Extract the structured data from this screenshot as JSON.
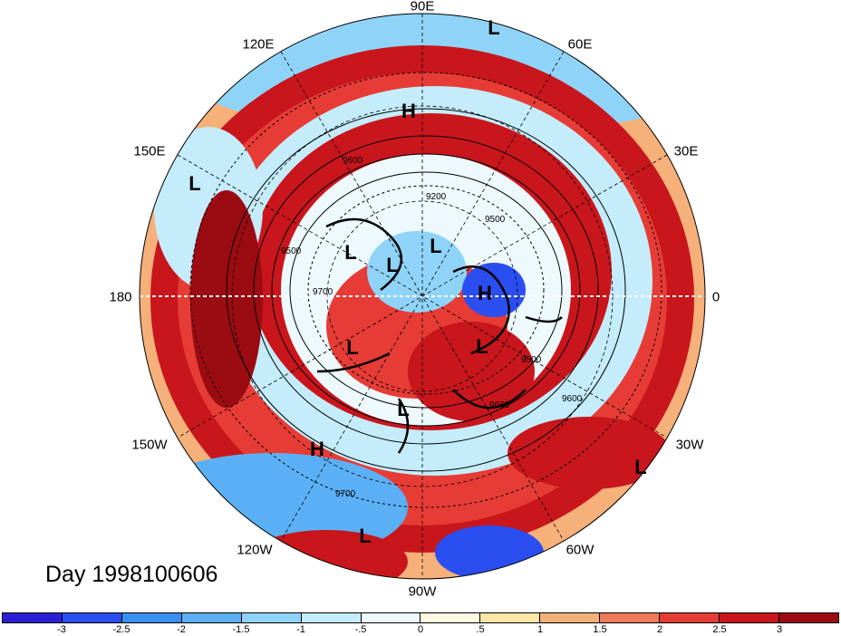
{
  "title": "Day 1998100606",
  "longitude_labels": {
    "top": "90E",
    "upper_left": "120E",
    "upper_right": "60E",
    "left_upper": "150E",
    "right_upper": "30E",
    "left": "180",
    "right": "0",
    "left_lower": "150W",
    "right_lower": "30W",
    "lower_left": "120W",
    "lower_right": "60W",
    "bottom": "90W"
  },
  "pressure_centers": [
    "L",
    "H",
    "L",
    "L",
    "L",
    "L",
    "H",
    "L",
    "L",
    "L",
    "H",
    "L",
    "L"
  ],
  "contour_labels": [
    "9600",
    "9200",
    "9500",
    "9500",
    "9700",
    "9600",
    "9500",
    "9600",
    "9700"
  ],
  "colorbar": {
    "colors": [
      "#2b1fd6",
      "#2a4ef0",
      "#3a8ff2",
      "#5bb0f5",
      "#8fd4f8",
      "#c4ecfb",
      "#eef9fd",
      "#fff9e0",
      "#fde6a6",
      "#f6b07a",
      "#ef7a58",
      "#e63c35",
      "#c8161c",
      "#9b0b12"
    ],
    "ticks": [
      "-3",
      "-2.5",
      "-2",
      "-1.5",
      "-1",
      "-.5",
      "0",
      ".5",
      "1",
      "1.5",
      "2",
      "2.5",
      "3"
    ]
  }
}
